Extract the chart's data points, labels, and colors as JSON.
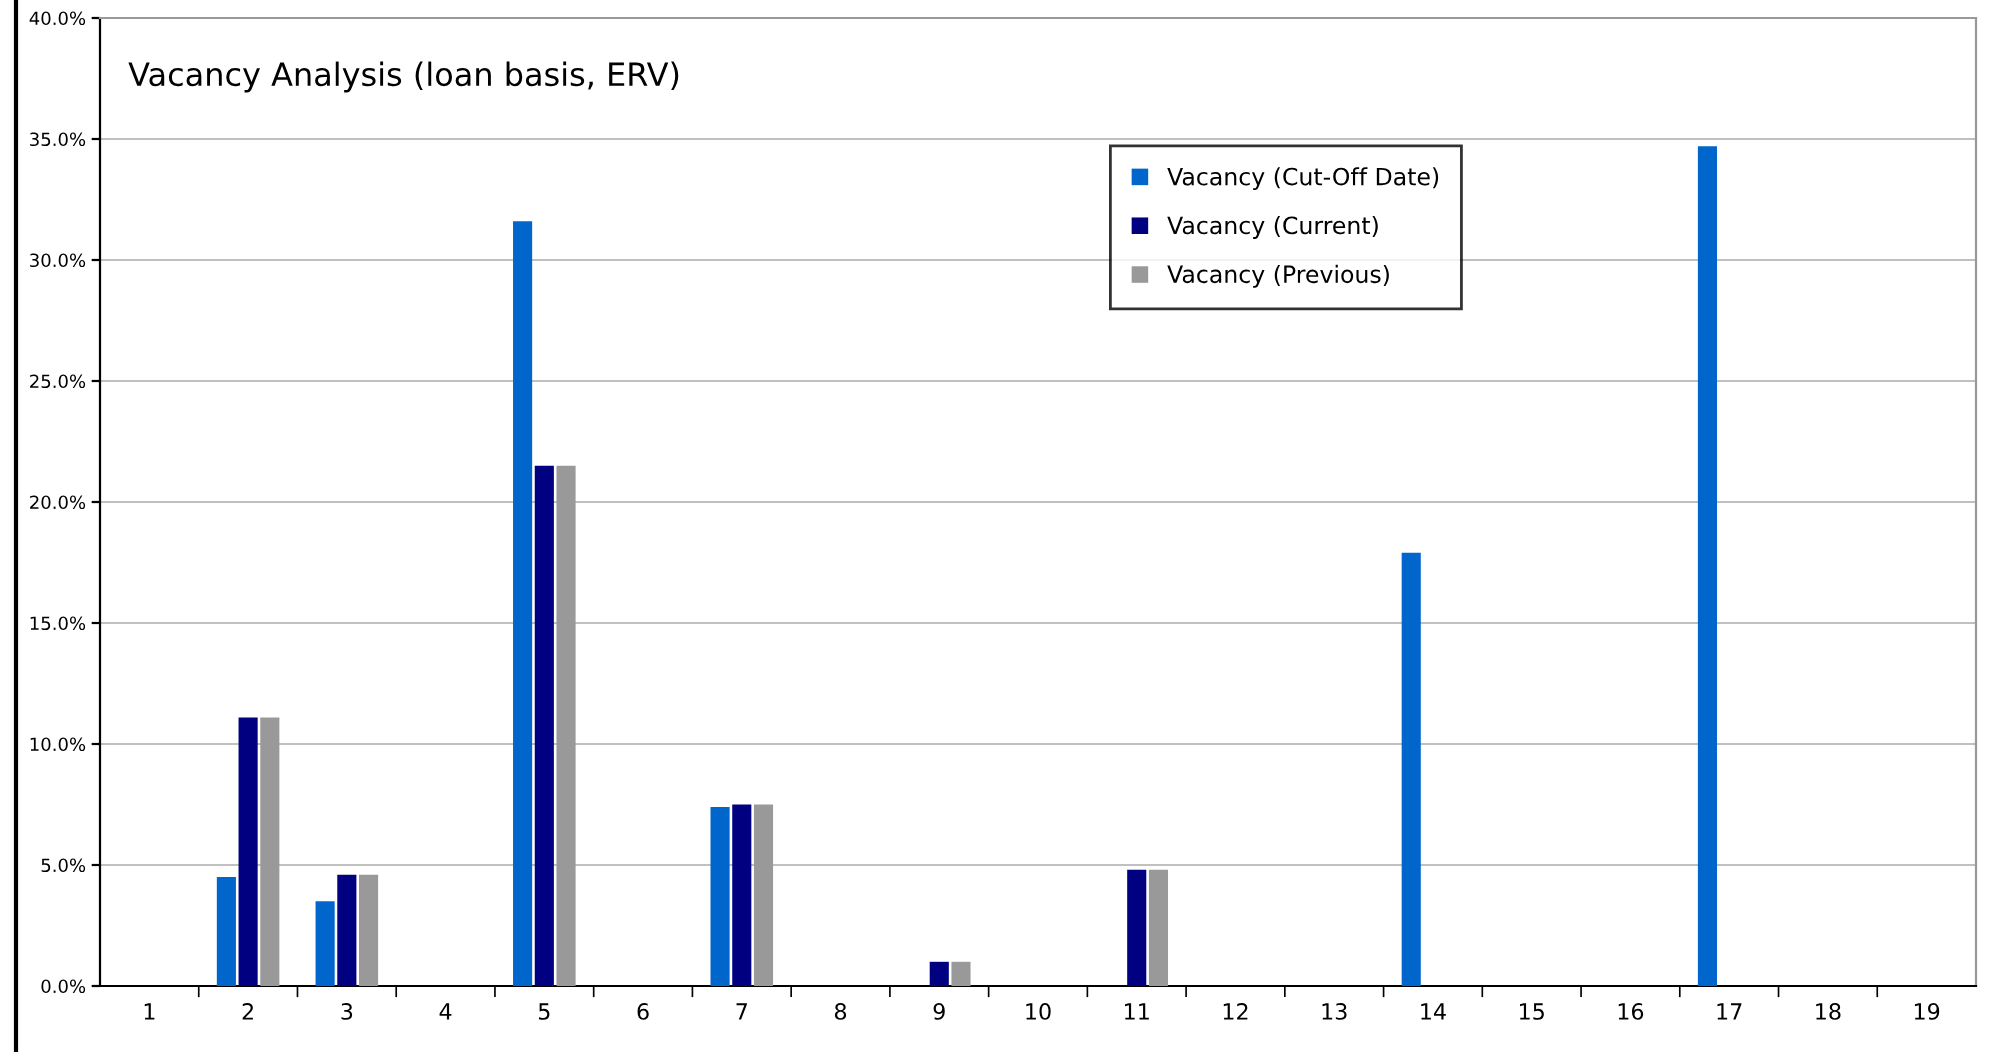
{
  "chart_data": {
    "type": "bar",
    "title": "Vacancy Analysis (loan basis, ERV)",
    "categories": [
      "1",
      "2",
      "3",
      "4",
      "5",
      "6",
      "7",
      "8",
      "9",
      "10",
      "11",
      "12",
      "13",
      "14",
      "15",
      "16",
      "17",
      "18",
      "19"
    ],
    "series": [
      {
        "name": "Vacancy (Cut-Off Date)",
        "color": "#0066cc",
        "values": [
          null,
          4.5,
          3.5,
          null,
          31.6,
          null,
          7.4,
          null,
          null,
          null,
          null,
          null,
          null,
          17.9,
          null,
          null,
          34.7,
          null,
          null
        ]
      },
      {
        "name": "Vacancy (Current)",
        "color": "#000080",
        "values": [
          null,
          11.1,
          4.6,
          null,
          21.5,
          null,
          7.5,
          null,
          1.0,
          null,
          4.8,
          null,
          null,
          null,
          null,
          null,
          null,
          null,
          null
        ]
      },
      {
        "name": "Vacancy (Previous)",
        "color": "#999999",
        "values": [
          null,
          11.1,
          4.6,
          null,
          21.5,
          null,
          7.5,
          null,
          1.0,
          null,
          4.8,
          null,
          null,
          null,
          null,
          null,
          null,
          null,
          null
        ]
      }
    ],
    "ylim": [
      0,
      40
    ],
    "yticks": [
      {
        "value": 0,
        "label": "0.0%"
      },
      {
        "value": 5,
        "label": "5.0%"
      },
      {
        "value": 10,
        "label": "10.0%"
      },
      {
        "value": 15,
        "label": "15.0%"
      },
      {
        "value": 20,
        "label": "20.0%"
      },
      {
        "value": 25,
        "label": "25.0%"
      },
      {
        "value": 30,
        "label": "30.0%"
      },
      {
        "value": 35,
        "label": "35.0%"
      },
      {
        "value": 40,
        "label": "40.0%"
      }
    ],
    "grid": "y",
    "legend": "top right"
  }
}
